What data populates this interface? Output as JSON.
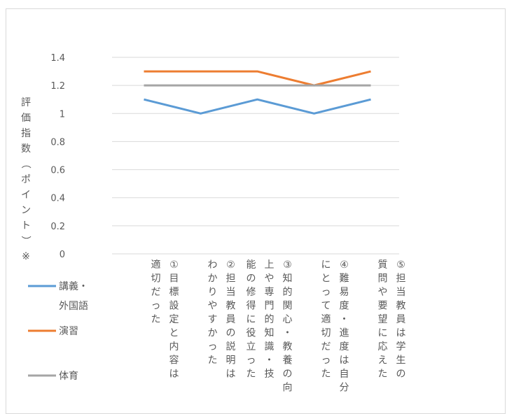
{
  "chart_data": {
    "type": "line",
    "ylabel": "評価指数（ポイント）※",
    "ylim": [
      0,
      1.4
    ],
    "yticks": [
      "0",
      "0.2",
      "0.4",
      "0.6",
      "0.8",
      "1",
      "1.2",
      "1.4"
    ],
    "grid": true,
    "legend_position": "bottom-left",
    "categories": [
      [
        "①目標設定と内容は",
        "適切だった"
      ],
      [
        "②担当教員の説明は",
        "わかりやすかった"
      ],
      [
        "③知的関心・教養の向",
        "上や専門的知識・技",
        "能の修得に役立った"
      ],
      [
        "④難易度・進度は自分",
        "にとって適切だった"
      ],
      [
        "⑤担当教員は学生の",
        "質問や要望に応えた"
      ]
    ],
    "series": [
      {
        "name_lines": [
          "講義・",
          "外国語"
        ],
        "color": "#5b9bd5",
        "values": [
          1.1,
          1.0,
          1.1,
          1.0,
          1.1
        ]
      },
      {
        "name_lines": [
          "演習"
        ],
        "color": "#ed7d31",
        "values": [
          1.3,
          1.3,
          1.3,
          1.2,
          1.3
        ]
      },
      {
        "name_lines": [
          "体育"
        ],
        "color": "#a5a5a5",
        "values": [
          1.2,
          1.2,
          1.2,
          1.2,
          1.2
        ]
      }
    ]
  }
}
